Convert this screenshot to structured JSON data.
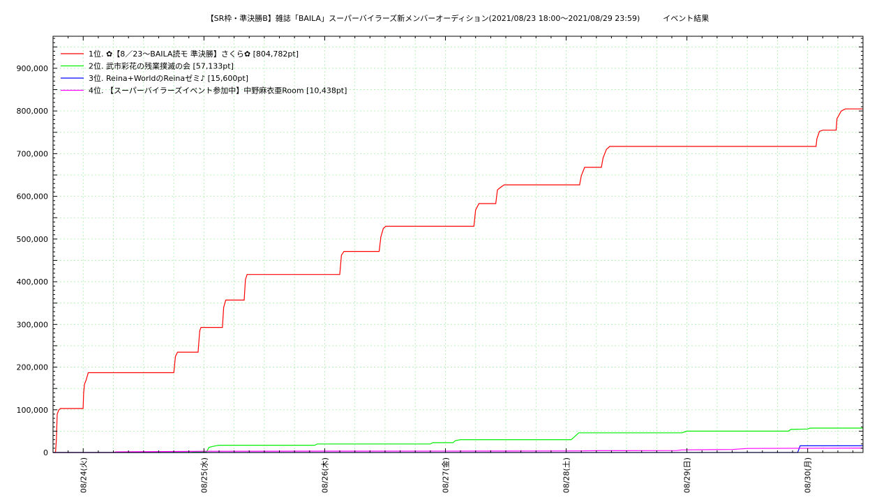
{
  "chart_data": {
    "type": "line",
    "title": "【SR枠・準決勝B】雑誌「BAILA」スーパーバイラーズ新メンバーオーディション(2021/08/23 18:00〜2021/08/29 23:59)　　　イベント結果",
    "xlabel": "",
    "ylabel": "",
    "ylim": [
      0,
      975000
    ],
    "y_ticks": [
      0,
      100000,
      200000,
      300000,
      400000,
      500000,
      600000,
      700000,
      800000,
      900000
    ],
    "y_tick_labels": [
      "0",
      "100,000",
      "200,000",
      "300,000",
      "400,000",
      "500,000",
      "600,000",
      "700,000",
      "800,000",
      "900,000"
    ],
    "x_ticks": [
      "08/24(火)",
      "08/25(水)",
      "08/26(木)",
      "08/27(金)",
      "08/28(土)",
      "08/29(日)",
      "08/30(月)"
    ],
    "grid": true,
    "legend_position": "top-left",
    "series": [
      {
        "name": "1位. ✿【8／23〜BAILA読モ 準決勝】さくら✿ [804,782pt]",
        "color": "#ff0000",
        "points": [
          [
            "08/23 18:00",
            0
          ],
          [
            "08/23 18:30",
            0
          ],
          [
            "08/23 18:40",
            30000
          ],
          [
            "08/23 18:50",
            90000
          ],
          [
            "08/23 19:10",
            100000
          ],
          [
            "08/23 19:30",
            103000
          ],
          [
            "08/23 23:59",
            103000
          ],
          [
            "08/24 00:05",
            140000
          ],
          [
            "08/24 00:15",
            160000
          ],
          [
            "08/24 00:35",
            170000
          ],
          [
            "08/24 01:00",
            187000
          ],
          [
            "08/24 18:00",
            187000
          ],
          [
            "08/24 18:20",
            225000
          ],
          [
            "08/24 18:45",
            235000
          ],
          [
            "08/24 22:50",
            235000
          ],
          [
            "08/24 23:10",
            285000
          ],
          [
            "08/24 23:25",
            293000
          ],
          [
            "08/25 03:40",
            293000
          ],
          [
            "08/25 03:55",
            340000
          ],
          [
            "08/25 04:20",
            357000
          ],
          [
            "08/25 08:00",
            357000
          ],
          [
            "08/25 08:15",
            405000
          ],
          [
            "08/25 08:35",
            417000
          ],
          [
            "08/26 03:00",
            417000
          ],
          [
            "08/26 03:20",
            462000
          ],
          [
            "08/26 03:50",
            471000
          ],
          [
            "08/26 10:50",
            471000
          ],
          [
            "08/26 11:10",
            505000
          ],
          [
            "08/26 11:40",
            525000
          ],
          [
            "08/26 12:10",
            530000
          ],
          [
            "08/27 05:40",
            530000
          ],
          [
            "08/27 06:00",
            568000
          ],
          [
            "08/27 06:40",
            583000
          ],
          [
            "08/27 10:00",
            583000
          ],
          [
            "08/27 10:20",
            615000
          ],
          [
            "08/27 10:50",
            620000
          ],
          [
            "08/27 11:40",
            627000
          ],
          [
            "08/28 02:40",
            627000
          ],
          [
            "08/28 03:00",
            648000
          ],
          [
            "08/28 03:40",
            668000
          ],
          [
            "08/28 07:00",
            668000
          ],
          [
            "08/28 07:20",
            690000
          ],
          [
            "08/28 08:00",
            710000
          ],
          [
            "08/28 08:40",
            717000
          ],
          [
            "08/30 01:40",
            717000
          ],
          [
            "08/30 01:50",
            735000
          ],
          [
            "08/30 02:20",
            752000
          ],
          [
            "08/30 03:00",
            755000
          ],
          [
            "08/30 05:40",
            755000
          ],
          [
            "08/30 05:50",
            782000
          ],
          [
            "08/30 06:40",
            800000
          ],
          [
            "08/30 07:30",
            804782
          ],
          [
            "08/30 11:00",
            804782
          ]
        ]
      },
      {
        "name": "2位. 武市彩花の残業撲滅の会 [57,133pt]",
        "color": "#00ee00",
        "points": [
          [
            "08/23 18:00",
            0
          ],
          [
            "08/24 21:30",
            0
          ],
          [
            "08/24 22:00",
            1000
          ],
          [
            "08/25 00:30",
            1000
          ],
          [
            "08/25 01:00",
            12000
          ],
          [
            "08/25 01:40",
            14000
          ],
          [
            "08/25 02:30",
            16000
          ],
          [
            "08/25 03:00",
            17000
          ],
          [
            "08/25 22:00",
            17000
          ],
          [
            "08/25 22:30",
            20000
          ],
          [
            "08/26 21:00",
            20000
          ],
          [
            "08/26 21:30",
            23000
          ],
          [
            "08/27 01:30",
            23000
          ],
          [
            "08/27 02:00",
            28000
          ],
          [
            "08/27 03:00",
            30000
          ],
          [
            "08/28 01:00",
            30000
          ],
          [
            "08/28 01:40",
            37000
          ],
          [
            "08/28 02:30",
            46000
          ],
          [
            "08/28 23:00",
            46000
          ],
          [
            "08/29 00:00",
            50000
          ],
          [
            "08/29 20:10",
            50000
          ],
          [
            "08/29 20:40",
            54000
          ],
          [
            "08/29 23:59",
            55000
          ],
          [
            "08/30 00:30",
            57133
          ],
          [
            "08/30 11:00",
            57133
          ]
        ]
      },
      {
        "name": "3位. Reina+WorldのReinaゼミ♪ [15,600pt]",
        "color": "#0000ff",
        "points": [
          [
            "08/23 18:00",
            0
          ],
          [
            "08/29 22:00",
            0
          ],
          [
            "08/29 22:30",
            15600
          ],
          [
            "08/30 11:00",
            15600
          ]
        ]
      },
      {
        "name": "4位. 【スーパーバイラーズイベント参加中】中野麻衣亜Room [10,438pt]",
        "color": "#ff00ff",
        "points": [
          [
            "08/23 18:00",
            0
          ],
          [
            "08/24 06:00",
            0
          ],
          [
            "08/24 06:30",
            1500
          ],
          [
            "08/24 19:00",
            2500
          ],
          [
            "08/25 00:00",
            3000
          ],
          [
            "08/26 00:00",
            3200
          ],
          [
            "08/27 12:00",
            3500
          ],
          [
            "08/28 03:00",
            3800
          ],
          [
            "08/28 06:00",
            4200
          ],
          [
            "08/28 22:00",
            4600
          ],
          [
            "08/28 23:00",
            6000
          ],
          [
            "08/29 09:00",
            7000
          ],
          [
            "08/29 12:00",
            9500
          ],
          [
            "08/30 11:00",
            10438
          ]
        ]
      }
    ]
  }
}
